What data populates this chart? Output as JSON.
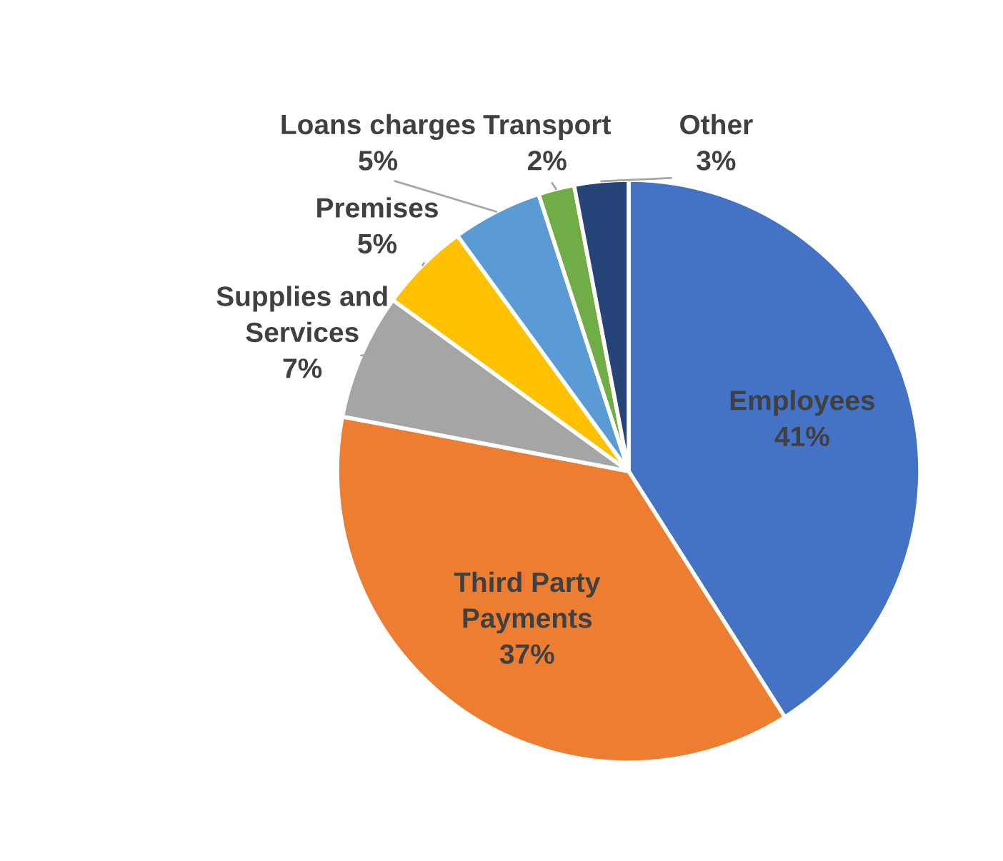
{
  "chart_data": {
    "type": "pie",
    "categories": [
      "Employees",
      "Third Party\nPayments",
      "Supplies and\nServices",
      "Premises",
      "Loans charges",
      "Transport",
      "Other"
    ],
    "values": [
      41,
      37,
      7,
      5,
      5,
      2,
      3
    ],
    "value_labels": [
      "41%",
      "37%",
      "7%",
      "5%",
      "5%",
      "2%",
      "3%"
    ],
    "colors": [
      "#4472c4",
      "#ed7d31",
      "#a5a5a5",
      "#ffc000",
      "#5b9bd5",
      "#70ad47",
      "#264478"
    ],
    "legend": false
  }
}
